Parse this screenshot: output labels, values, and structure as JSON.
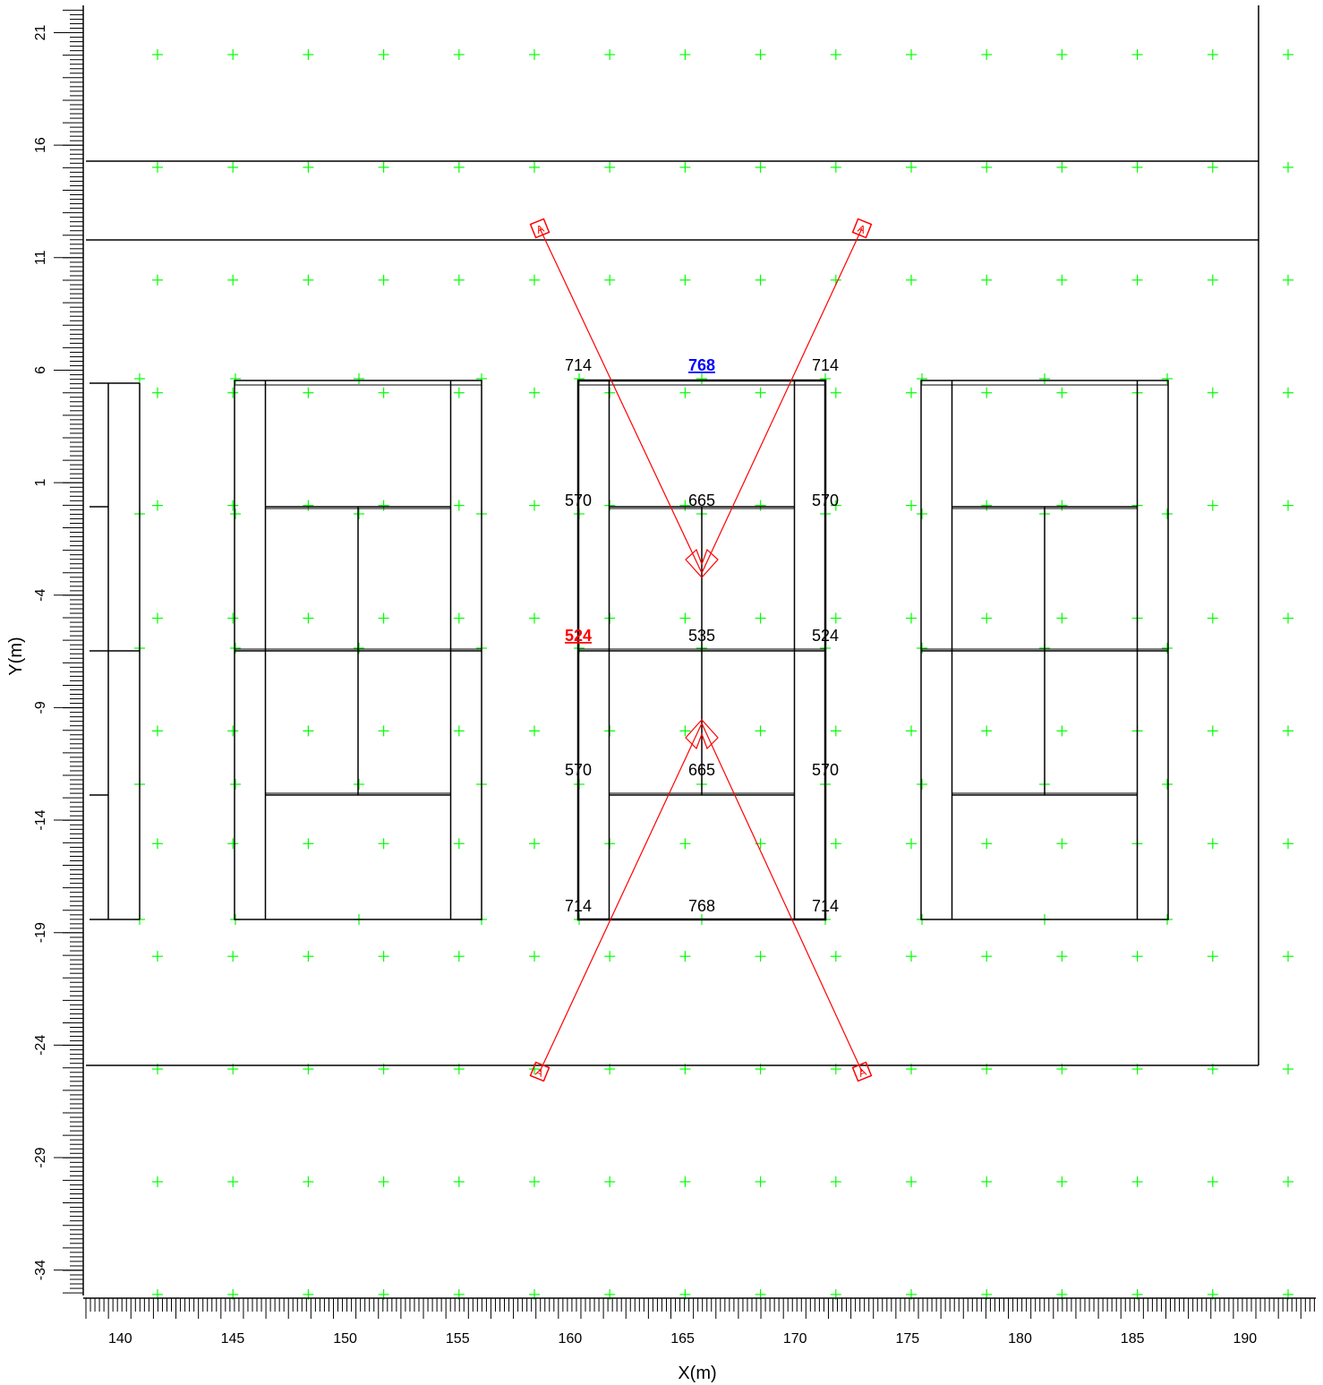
{
  "axes": {
    "x_label": "X(m)",
    "y_label": "Y(m)",
    "x_ticks": [
      "140",
      "145",
      "150",
      "155",
      "160",
      "165",
      "170",
      "175",
      "180",
      "185",
      "190"
    ],
    "y_ticks": [
      "21",
      "16",
      "11",
      "6",
      "1",
      "-4",
      "-9",
      "-14",
      "-19",
      "-24",
      "-29",
      "-34"
    ],
    "x_range": [
      138.5,
      193
    ],
    "y_range": [
      -36,
      22.5
    ]
  },
  "colors": {
    "grid_marker": "#00ff00",
    "court_lines": "#000000",
    "light_beams": "#ff0000",
    "max_value": "#0000ff",
    "min_value": "#ff0000"
  },
  "illuminance_values": {
    "top_left": "714",
    "top_center_max": "768",
    "top_right": "714",
    "upper_left": "570",
    "upper_center": "665",
    "upper_right": "570",
    "mid_left_min": "524",
    "mid_center": "535",
    "mid_right": "524",
    "lower_left": "570",
    "lower_center": "665",
    "lower_right": "570",
    "bottom_left": "714",
    "bottom_center": "768",
    "bottom_right": "714"
  },
  "luminaire_marker": "A"
}
